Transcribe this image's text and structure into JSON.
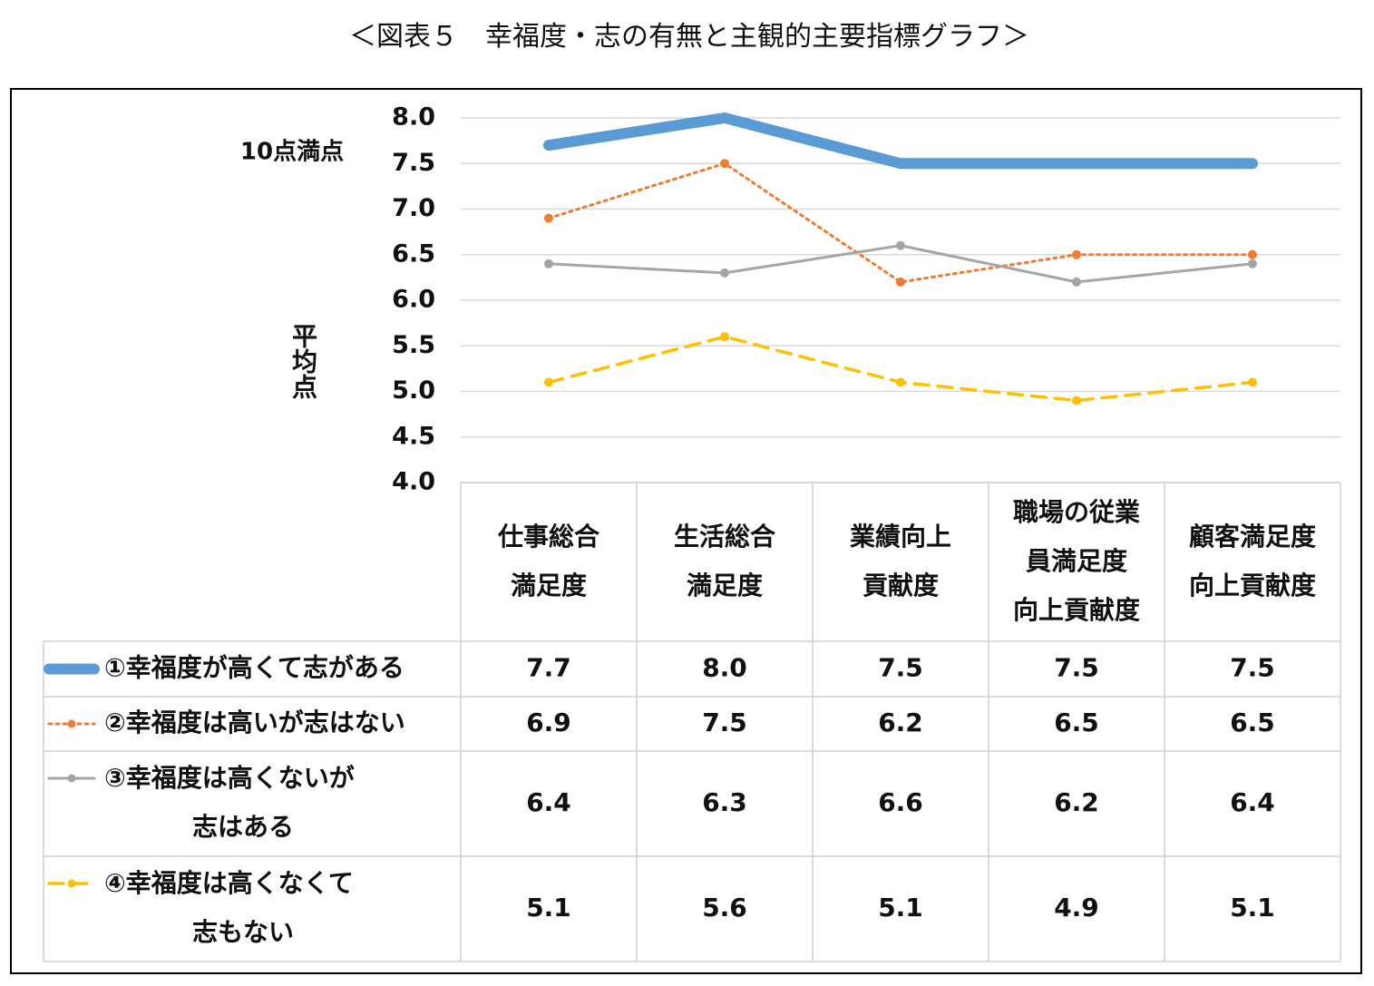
{
  "chart_data": {
    "type": "line",
    "title": "＜図表５　幸福度・志の有無と主観的主要指標グラフ＞",
    "note": "10点満点",
    "y_label": "平均点",
    "categories": [
      "仕事総合\n満足度",
      "生活総合\n満足度",
      "業績向上\n貢献度",
      "職場の従業\n員満足度\n向上貢献度",
      "顧客満足度\n向上貢献度"
    ],
    "series": [
      {
        "name": "①幸福度が高くて志がある",
        "color": "#5b9bd5",
        "line_style": "solid-thick",
        "values": [
          7.7,
          8.0,
          7.5,
          7.5,
          7.5
        ],
        "value_labels": [
          "7.7",
          "8.0",
          "7.5",
          "7.5",
          "7.5"
        ]
      },
      {
        "name": "②幸福度は高いが志はない",
        "color": "#ed7d31",
        "line_style": "dotted",
        "values": [
          6.9,
          7.5,
          6.2,
          6.5,
          6.5
        ]
      },
      {
        "name": "③幸福度は高くないが\n志はある",
        "color": "#a5a5a5",
        "line_style": "solid",
        "values": [
          6.4,
          6.3,
          6.6,
          6.2,
          6.4
        ]
      },
      {
        "name": "④幸福度は高くなくて\n志もない",
        "color": "#ffc000",
        "line_style": "dashed",
        "values": [
          5.1,
          5.6,
          5.1,
          4.9,
          5.1
        ]
      }
    ],
    "ylim": [
      4,
      8
    ],
    "yticks": [
      {
        "value": 4,
        "label": "4.0"
      },
      4.5,
      {
        "value": 5,
        "label": "5.0"
      },
      5.5,
      {
        "value": 6,
        "label": "6.0"
      },
      6.5,
      {
        "value": 7,
        "label": "7.0"
      },
      7.5,
      {
        "value": 8,
        "label": "8.0"
      }
    ],
    "grid": true
  }
}
